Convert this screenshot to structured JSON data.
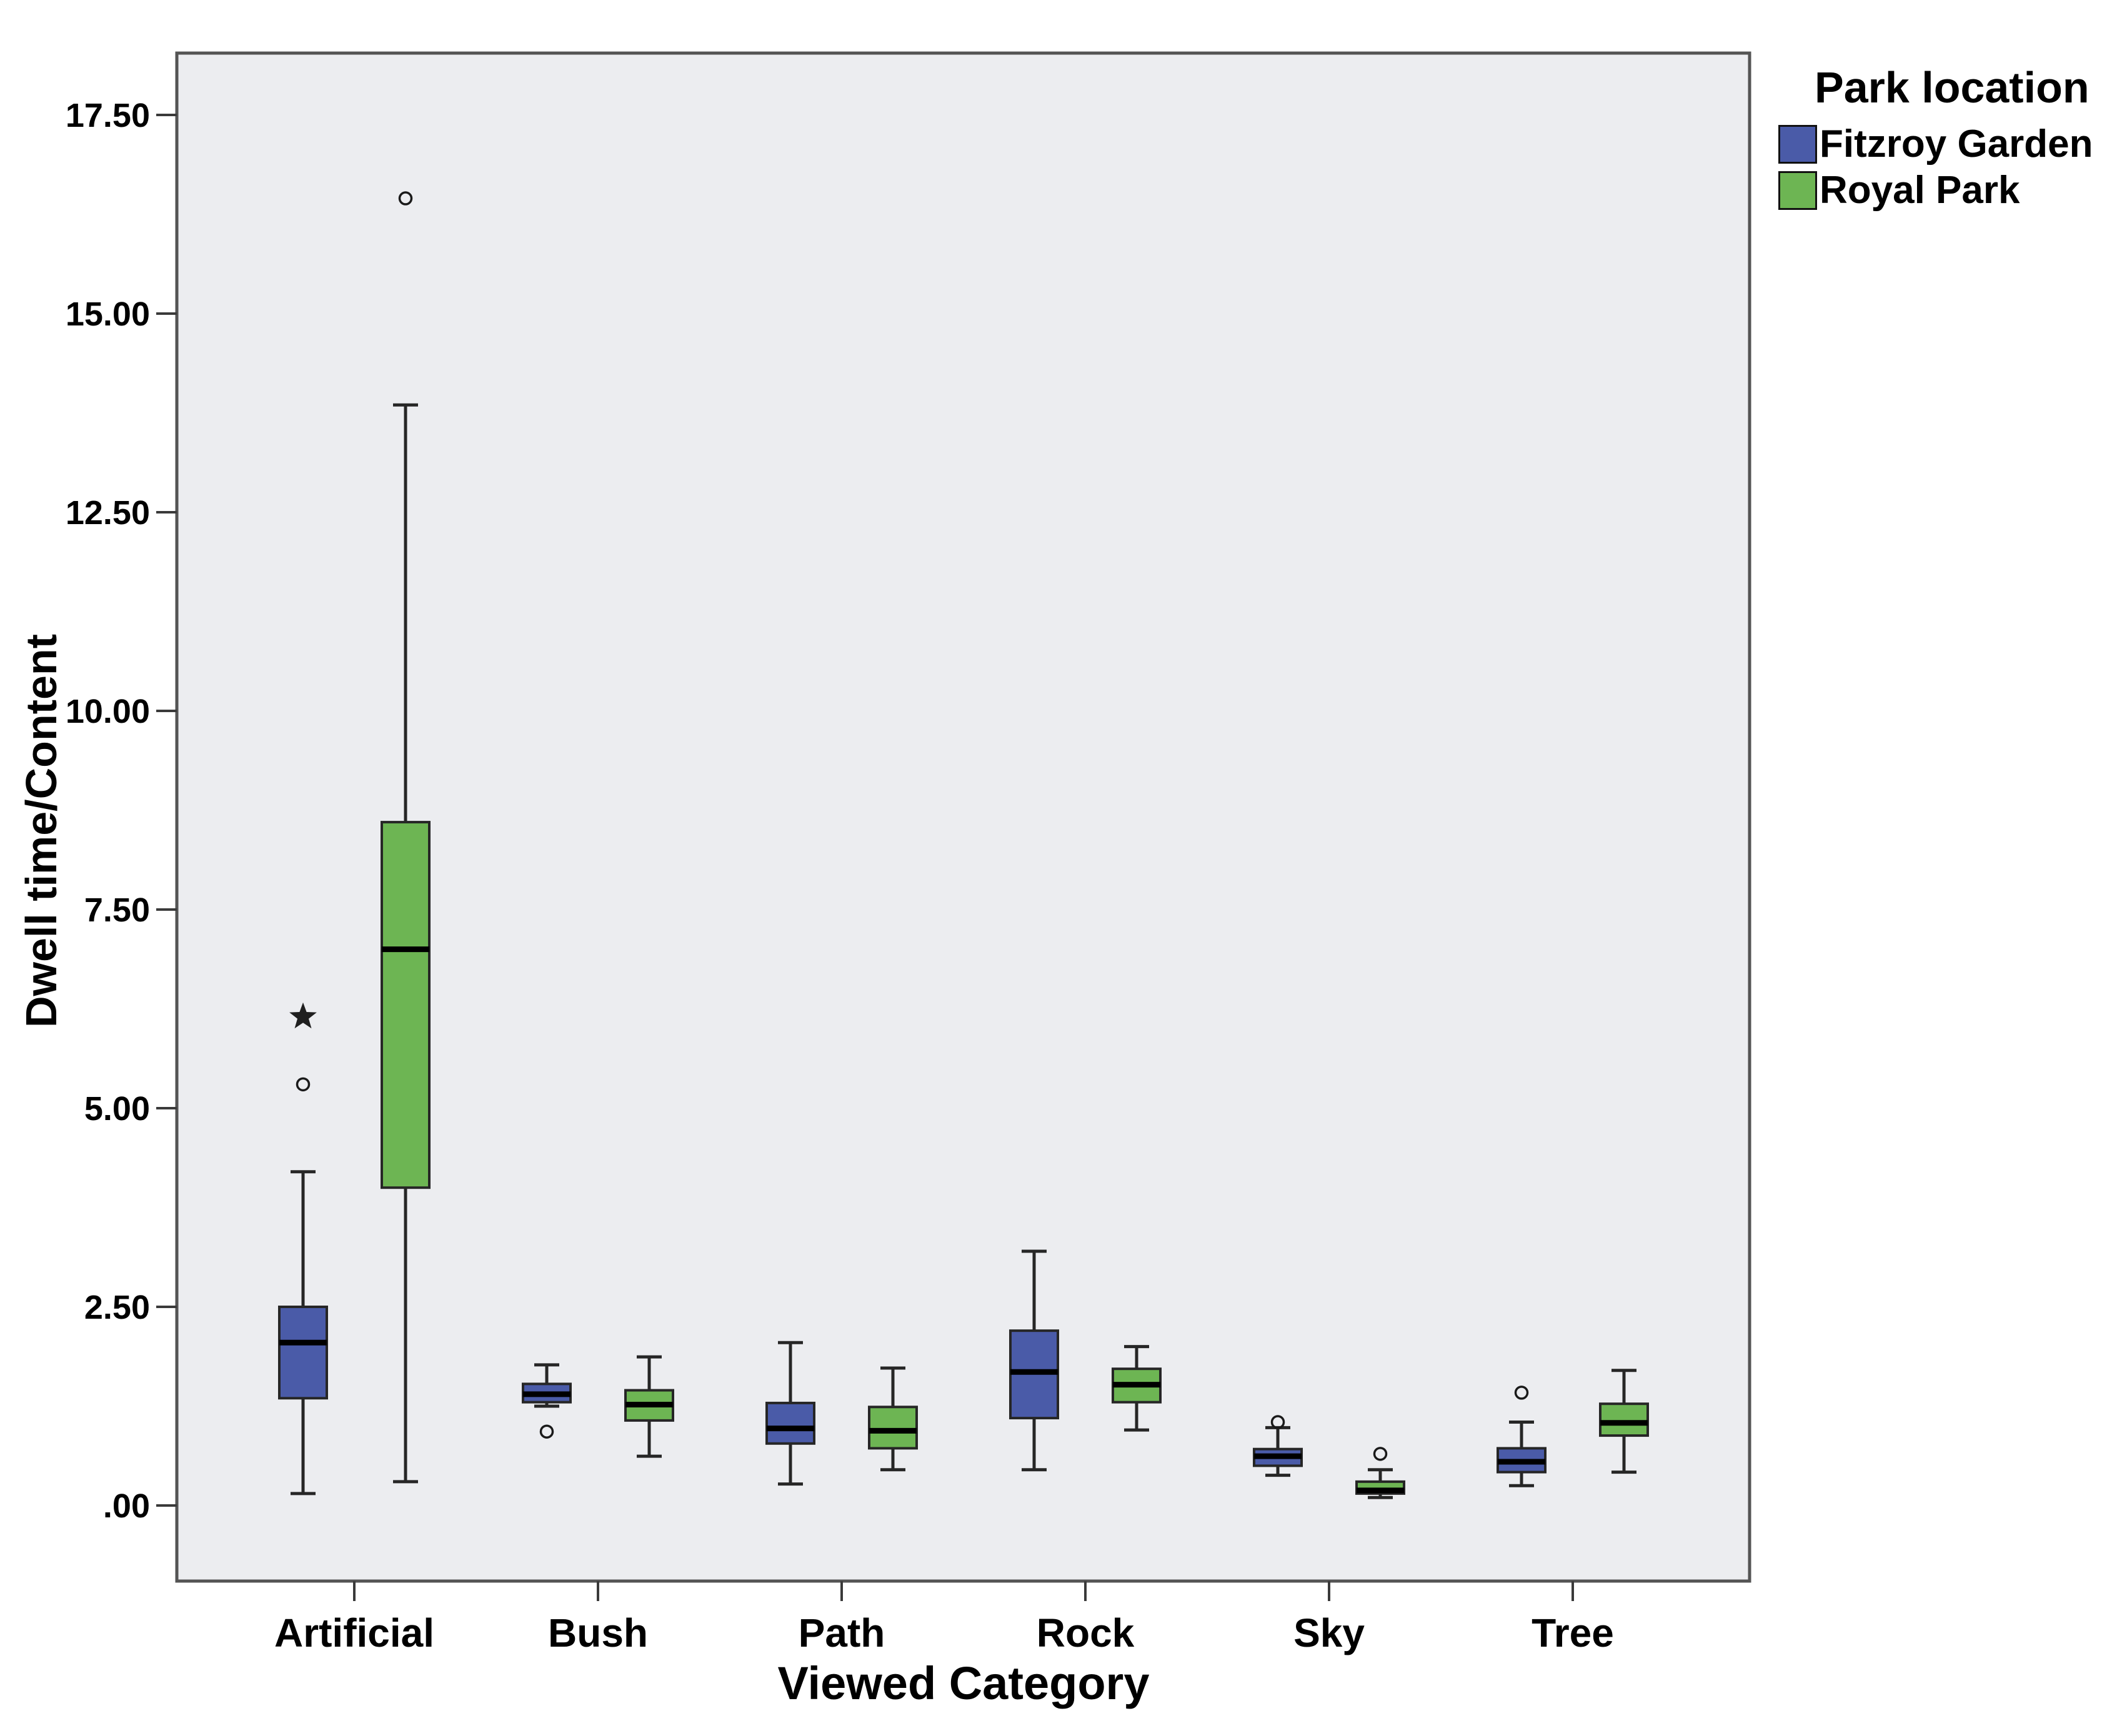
{
  "figure": {
    "background": "#ffffff",
    "plot_border_color": "#545454"
  },
  "chart_data": {
    "type": "boxplot",
    "title": "",
    "xlabel": "Viewed Category",
    "ylabel": "Dwell time/Content",
    "ylim": [
      -0.92,
      18.3
    ],
    "grid": false,
    "plot_background": "#ECEDF0",
    "yticks": [
      0,
      2.5,
      5,
      7.5,
      10,
      12.5,
      15,
      17.5
    ],
    "ytick_labels": [
      ".00",
      "2.50",
      "5.00",
      "7.50",
      "10.00",
      "12.50",
      "15.00",
      "17.50"
    ],
    "categories": [
      "Artificial",
      "Bush",
      "Path",
      "Rock",
      "Sky",
      "Tree"
    ],
    "legend": {
      "title": "Park location",
      "position": "top-right-outside"
    },
    "series": [
      {
        "name": "Fitzroy Garden",
        "color": "#4A5BA8",
        "boxes": [
          {
            "category": "Artificial",
            "whislo": 0.15,
            "q1": 1.35,
            "med": 2.05,
            "q3": 2.5,
            "whishi": 4.2,
            "outliers": [
              5.3
            ],
            "extremes": [
              6.15
            ]
          },
          {
            "category": "Bush",
            "whislo": 1.25,
            "q1": 1.3,
            "med": 1.4,
            "q3": 1.53,
            "whishi": 1.77,
            "outliers": [
              0.93
            ],
            "extremes": []
          },
          {
            "category": "Path",
            "whislo": 0.27,
            "q1": 0.78,
            "med": 0.97,
            "q3": 1.29,
            "whishi": 2.05,
            "outliers": [],
            "extremes": []
          },
          {
            "category": "Rock",
            "whislo": 0.45,
            "q1": 1.1,
            "med": 1.68,
            "q3": 2.2,
            "whishi": 3.2,
            "outliers": [],
            "extremes": []
          },
          {
            "category": "Sky",
            "whislo": 0.38,
            "q1": 0.5,
            "med": 0.62,
            "q3": 0.71,
            "whishi": 0.98,
            "outliers": [
              1.05
            ],
            "extremes": []
          },
          {
            "category": "Tree",
            "whislo": 0.25,
            "q1": 0.42,
            "med": 0.55,
            "q3": 0.72,
            "whishi": 1.05,
            "outliers": [
              1.42
            ],
            "extremes": []
          }
        ]
      },
      {
        "name": "Royal Park",
        "color": "#6DB553",
        "boxes": [
          {
            "category": "Artificial",
            "whislo": 0.3,
            "q1": 4.0,
            "med": 7.0,
            "q3": 8.6,
            "whishi": 13.85,
            "outliers": [
              16.45
            ],
            "extremes": []
          },
          {
            "category": "Bush",
            "whislo": 0.62,
            "q1": 1.07,
            "med": 1.27,
            "q3": 1.45,
            "whishi": 1.87,
            "outliers": [],
            "extremes": []
          },
          {
            "category": "Path",
            "whislo": 0.45,
            "q1": 0.72,
            "med": 0.94,
            "q3": 1.24,
            "whishi": 1.73,
            "outliers": [],
            "extremes": []
          },
          {
            "category": "Rock",
            "whislo": 0.95,
            "q1": 1.3,
            "med": 1.52,
            "q3": 1.72,
            "whishi": 2.0,
            "outliers": [],
            "extremes": []
          },
          {
            "category": "Sky",
            "whislo": 0.1,
            "q1": 0.15,
            "med": 0.19,
            "q3": 0.3,
            "whishi": 0.45,
            "outliers": [
              0.65
            ],
            "extremes": []
          },
          {
            "category": "Tree",
            "whislo": 0.42,
            "q1": 0.88,
            "med": 1.04,
            "q3": 1.28,
            "whishi": 1.7,
            "outliers": [],
            "extremes": []
          }
        ]
      }
    ]
  }
}
